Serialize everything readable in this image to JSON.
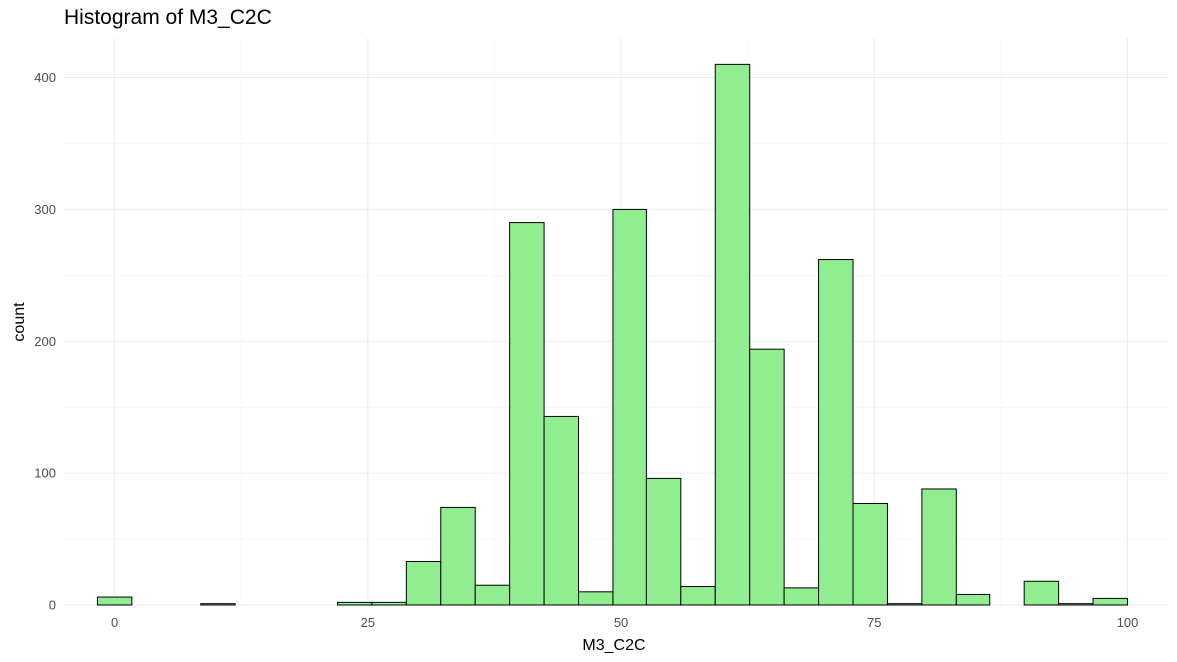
{
  "chart_data": {
    "type": "bar",
    "title": "Histogram of M3_C2C",
    "xlabel": "M3_C2C",
    "ylabel": "count",
    "xlim": [
      -5,
      104
    ],
    "ylim": [
      0,
      430
    ],
    "x_ticks": [
      0,
      25,
      50,
      75,
      100
    ],
    "y_ticks": [
      0,
      100,
      200,
      300,
      400
    ],
    "grid": true,
    "bar_color": "#90EE90",
    "bar_edge_color": "#000000",
    "bins": [
      {
        "start": -1.7,
        "end": 1.7,
        "count": 6
      },
      {
        "start": 1.7,
        "end": 5.1,
        "count": 0
      },
      {
        "start": 5.1,
        "end": 8.5,
        "count": 0
      },
      {
        "start": 8.5,
        "end": 11.9,
        "count": 1
      },
      {
        "start": 11.9,
        "end": 15.3,
        "count": 0
      },
      {
        "start": 15.3,
        "end": 18.6,
        "count": 0
      },
      {
        "start": 18.6,
        "end": 22.0,
        "count": 0
      },
      {
        "start": 22.0,
        "end": 25.4,
        "count": 2
      },
      {
        "start": 25.4,
        "end": 28.8,
        "count": 2
      },
      {
        "start": 28.8,
        "end": 32.2,
        "count": 33
      },
      {
        "start": 32.2,
        "end": 35.6,
        "count": 74
      },
      {
        "start": 35.6,
        "end": 39.0,
        "count": 15
      },
      {
        "start": 39.0,
        "end": 42.4,
        "count": 290
      },
      {
        "start": 42.4,
        "end": 45.8,
        "count": 143
      },
      {
        "start": 45.8,
        "end": 49.2,
        "count": 10
      },
      {
        "start": 49.2,
        "end": 52.5,
        "count": 300
      },
      {
        "start": 52.5,
        "end": 55.9,
        "count": 96
      },
      {
        "start": 55.9,
        "end": 59.3,
        "count": 14
      },
      {
        "start": 59.3,
        "end": 62.7,
        "count": 410
      },
      {
        "start": 62.7,
        "end": 66.1,
        "count": 194
      },
      {
        "start": 66.1,
        "end": 69.5,
        "count": 13
      },
      {
        "start": 69.5,
        "end": 72.9,
        "count": 262
      },
      {
        "start": 72.9,
        "end": 76.3,
        "count": 77
      },
      {
        "start": 76.3,
        "end": 79.7,
        "count": 1
      },
      {
        "start": 79.7,
        "end": 83.1,
        "count": 88
      },
      {
        "start": 83.1,
        "end": 86.4,
        "count": 8
      },
      {
        "start": 86.4,
        "end": 89.8,
        "count": 0
      },
      {
        "start": 89.8,
        "end": 93.2,
        "count": 18
      },
      {
        "start": 93.2,
        "end": 96.6,
        "count": 1
      },
      {
        "start": 96.6,
        "end": 100.0,
        "count": 5
      }
    ]
  }
}
